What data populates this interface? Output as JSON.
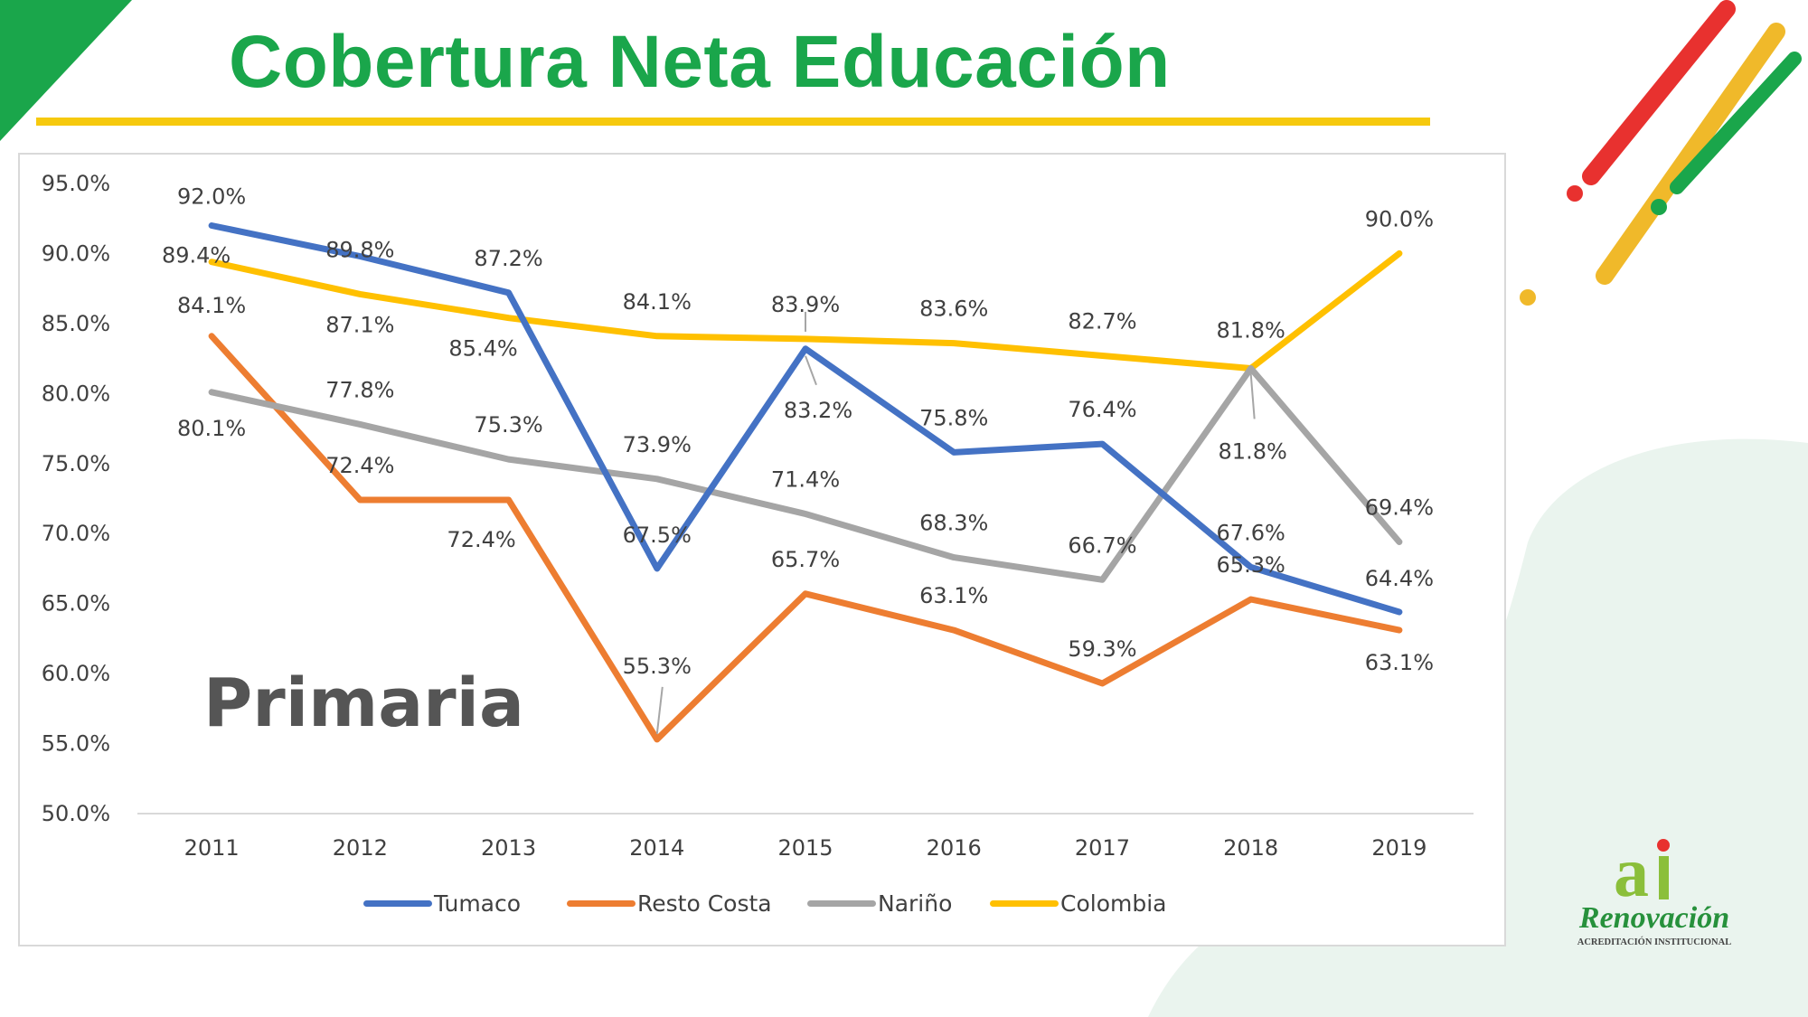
{
  "title": "Cobertura Neta Educación",
  "subtitle": "Primaria",
  "colors": {
    "title": "#1aa64b",
    "accent_yellow": "#f6c90e",
    "deco_red": "#e8312f",
    "deco_yellow": "#f0b92a",
    "deco_green": "#1aa64b"
  },
  "logo": {
    "brand": "Renovación",
    "tagline": "ACREDITACIÓN INSTITUCIONAL",
    "mark": "ai"
  },
  "chart_data": {
    "type": "line",
    "title": "",
    "xlabel": "",
    "ylabel": "",
    "x": [
      "2011",
      "2012",
      "2013",
      "2014",
      "2015",
      "2016",
      "2017",
      "2018",
      "2019"
    ],
    "ylim": [
      50,
      95
    ],
    "yticks": [
      "50.0%",
      "55.0%",
      "60.0%",
      "65.0%",
      "70.0%",
      "75.0%",
      "80.0%",
      "85.0%",
      "90.0%",
      "95.0%"
    ],
    "grid": false,
    "legend": "bottom",
    "series": [
      {
        "name": "Tumaco",
        "color": "#4472c4",
        "values": [
          92.0,
          89.8,
          87.2,
          67.5,
          83.2,
          75.8,
          76.4,
          67.6,
          64.4
        ],
        "labels": [
          "92.0%",
          "89.8%",
          "87.2%",
          "67.5%",
          "83.2%",
          "75.8%",
          "76.4%",
          "67.6%",
          "64.4%"
        ]
      },
      {
        "name": "Resto Costa",
        "color": "#ed7d31",
        "values": [
          84.1,
          72.4,
          72.4,
          55.3,
          65.7,
          63.1,
          59.3,
          65.3,
          63.1
        ],
        "labels": [
          "84.1%",
          "72.4%",
          "72.4%",
          "55.3%",
          "65.7%",
          "63.1%",
          "59.3%",
          "65.3%",
          "63.1%"
        ]
      },
      {
        "name": "Nariño",
        "color": "#a5a5a5",
        "values": [
          80.1,
          77.8,
          75.3,
          73.9,
          71.4,
          68.3,
          66.7,
          81.8,
          69.4
        ],
        "labels": [
          "80.1%",
          "77.8%",
          "75.3%",
          "73.9%",
          "71.4%",
          "68.3%",
          "66.7%",
          "81.8%",
          "69.4%"
        ]
      },
      {
        "name": "Colombia",
        "color": "#ffc000",
        "values": [
          89.4,
          87.1,
          85.4,
          84.1,
          83.9,
          83.6,
          82.7,
          81.8,
          90.0
        ],
        "labels": [
          "89.4%",
          "87.1%",
          "85.4%",
          "84.1%",
          "83.9%",
          "83.6%",
          "82.7%",
          "81.8%",
          "90.0%"
        ]
      }
    ]
  }
}
